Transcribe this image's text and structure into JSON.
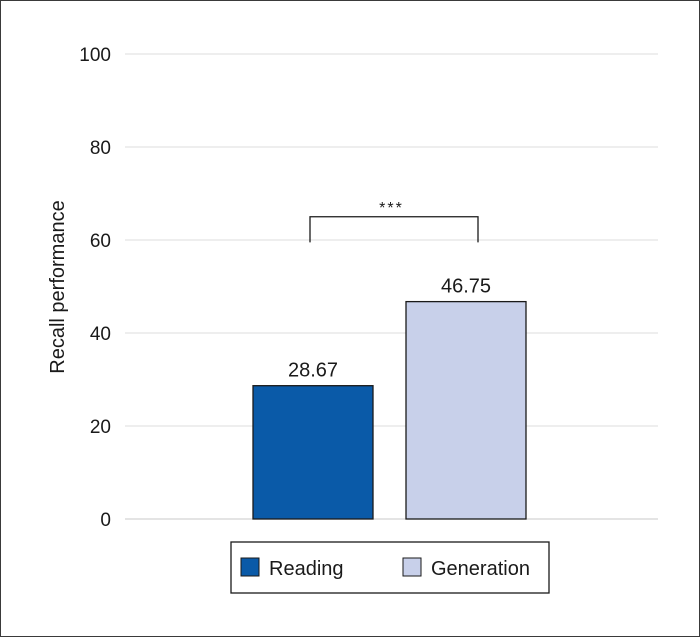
{
  "chart_data": {
    "type": "bar",
    "categories": [
      "Reading",
      "Generation"
    ],
    "values": [
      28.67,
      46.75
    ],
    "value_labels": [
      "28.67",
      "46.75"
    ],
    "colors": [
      "#0a5aa8",
      "#c8d0ea"
    ],
    "title": "",
    "xlabel": "",
    "ylabel": "Recall performance",
    "ylim": [
      0,
      100
    ],
    "yticks": [
      0,
      20,
      40,
      60,
      80,
      100
    ],
    "grid": true,
    "legend": {
      "placement": "bottom-center",
      "entries": [
        "Reading",
        "Generation"
      ]
    },
    "annotation": {
      "text": "***",
      "between": [
        "Reading",
        "Generation"
      ],
      "bracket_y": 65
    }
  }
}
